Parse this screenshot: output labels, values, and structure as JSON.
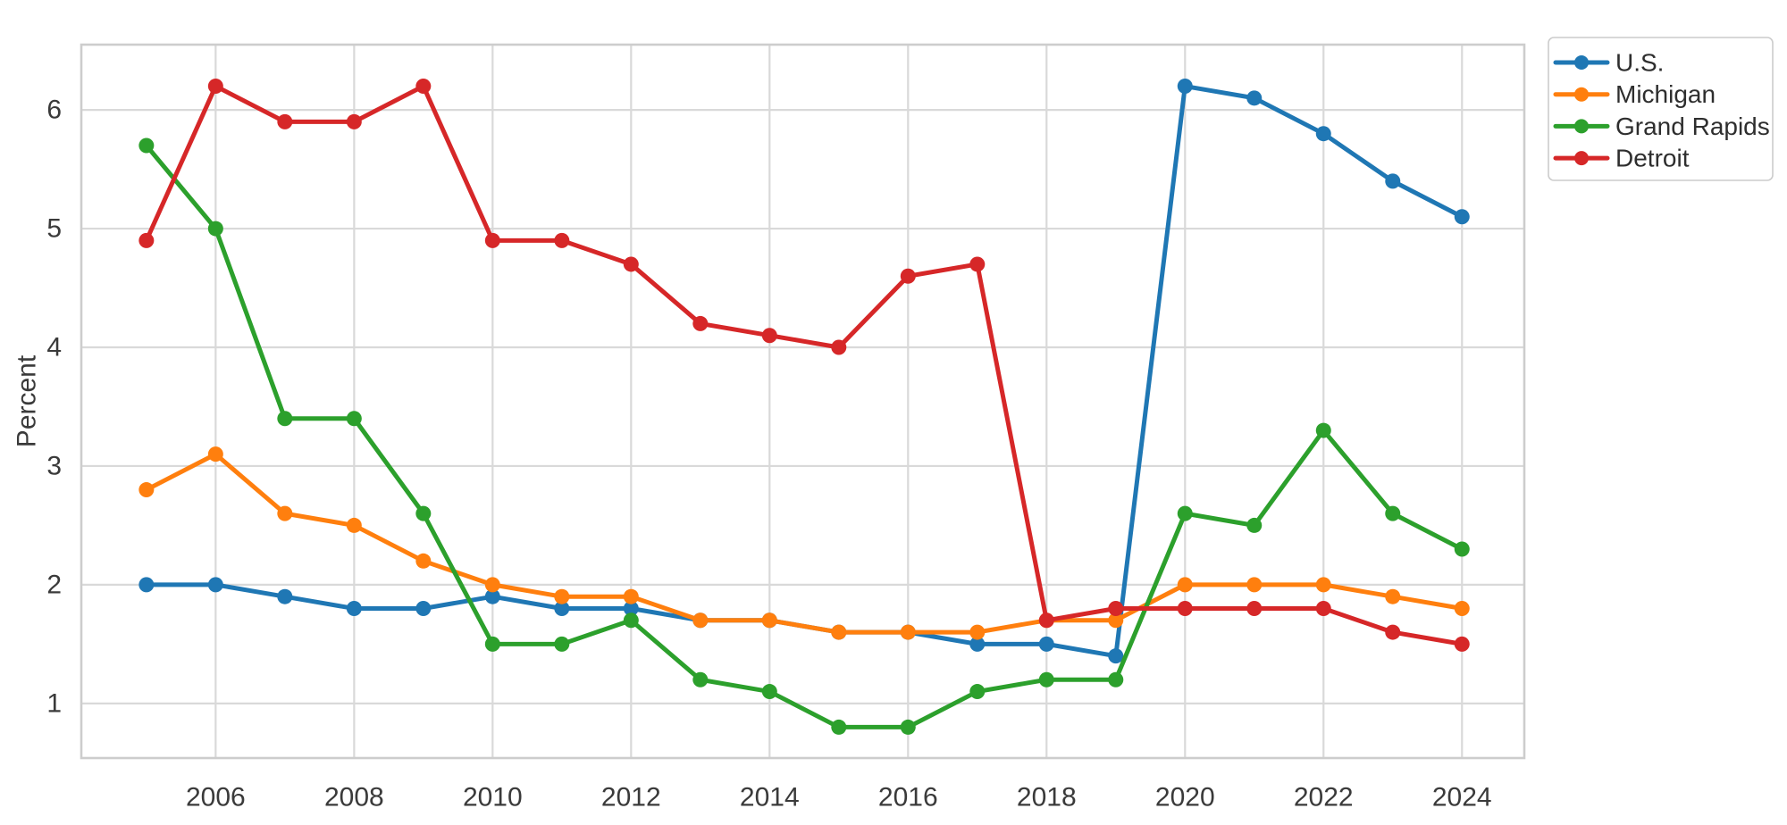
{
  "figure": {
    "background_color": "#ffffff",
    "plot_background_color": "#ffffff",
    "grid_color": "#d9d9d9",
    "spine_color": "#cdcdcd",
    "tick_label_color": "#3a3a3a",
    "legend_text_color": "#2e2e2e",
    "legend_border_color": "#cccccc",
    "legend_background": "#ffffff"
  },
  "chart_data": {
    "type": "line",
    "title": "",
    "xlabel": "",
    "ylabel": "Percent",
    "grid": true,
    "legend_position": "upper right outside",
    "xlim": [
      2004.06,
      2024.9
    ],
    "ylim": [
      0.54,
      6.55
    ],
    "xticks": [
      2006,
      2008,
      2010,
      2012,
      2014,
      2016,
      2018,
      2020,
      2022,
      2024
    ],
    "yticks": [
      1,
      2,
      3,
      4,
      5,
      6
    ],
    "x": [
      2005,
      2006,
      2007,
      2008,
      2009,
      2010,
      2011,
      2012,
      2013,
      2014,
      2015,
      2016,
      2017,
      2018,
      2019,
      2020,
      2021,
      2022,
      2023,
      2024
    ],
    "series": [
      {
        "name": "U.S.",
        "color": "#1f77b4",
        "values": [
          2.0,
          2.0,
          1.9,
          1.8,
          1.8,
          1.9,
          1.8,
          1.8,
          1.7,
          1.7,
          1.6,
          1.6,
          1.5,
          1.5,
          1.4,
          6.2,
          6.1,
          5.8,
          5.4,
          5.1
        ]
      },
      {
        "name": "Michigan",
        "color": "#ff7f0e",
        "values": [
          2.8,
          3.1,
          2.6,
          2.5,
          2.2,
          2.0,
          1.9,
          1.9,
          1.7,
          1.7,
          1.6,
          1.6,
          1.6,
          1.7,
          1.7,
          2.0,
          2.0,
          2.0,
          1.9,
          1.8
        ]
      },
      {
        "name": "Grand Rapids",
        "color": "#2ca02c",
        "values": [
          5.7,
          5.0,
          3.4,
          3.4,
          2.6,
          1.5,
          1.5,
          1.7,
          1.2,
          1.1,
          0.8,
          0.8,
          1.1,
          1.2,
          1.2,
          2.6,
          2.5,
          3.3,
          2.6,
          2.3
        ]
      },
      {
        "name": "Detroit",
        "color": "#d62728",
        "values": [
          4.9,
          6.2,
          5.9,
          5.9,
          6.2,
          4.9,
          4.9,
          4.7,
          4.2,
          4.1,
          4.0,
          4.6,
          4.7,
          1.7,
          1.8,
          1.8,
          1.8,
          1.8,
          1.6,
          1.5
        ]
      }
    ]
  }
}
